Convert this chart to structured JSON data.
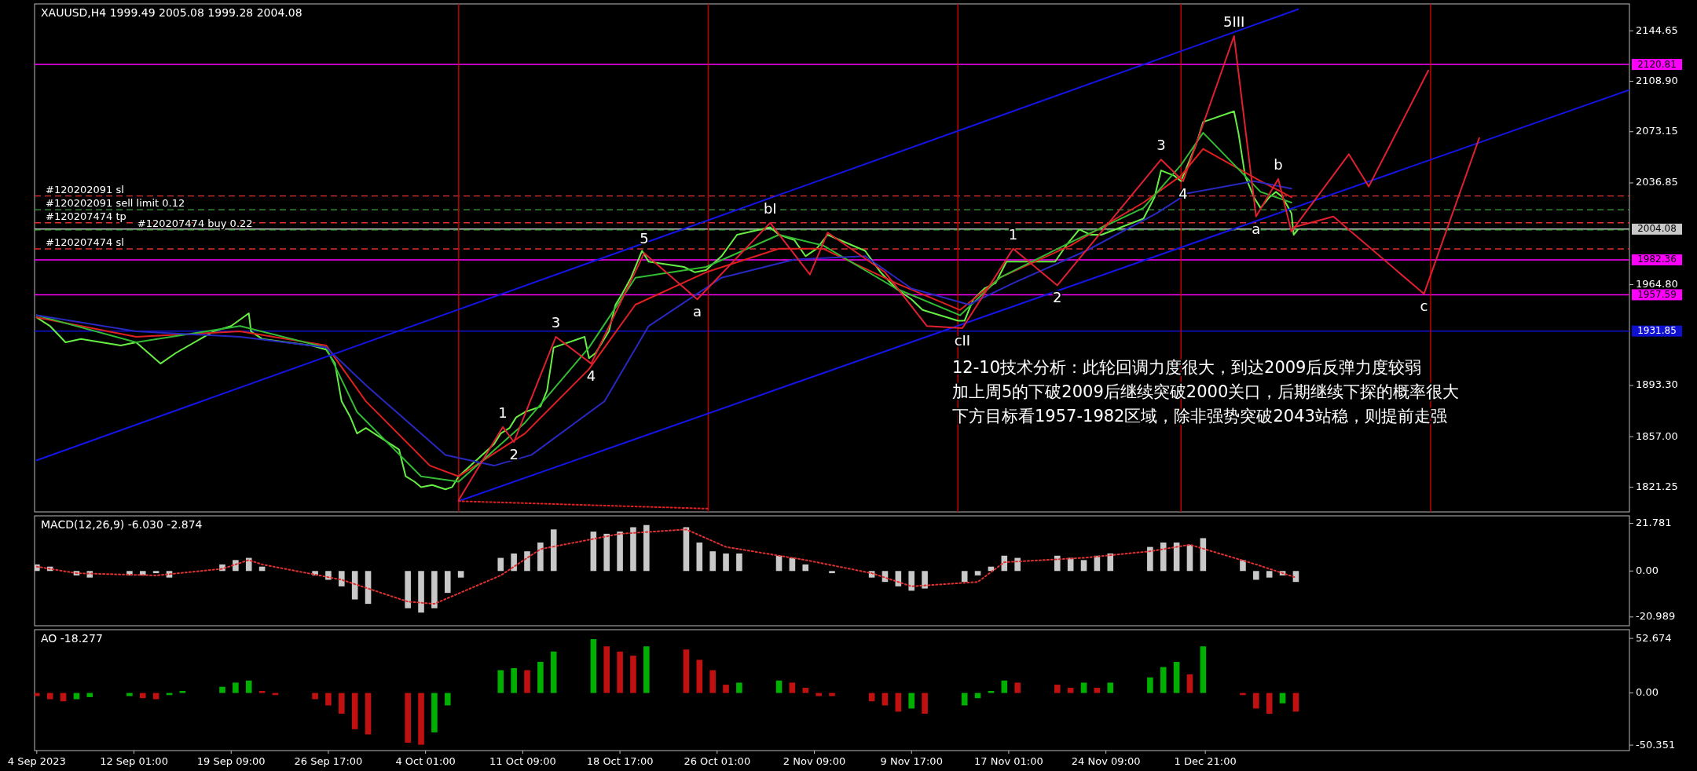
{
  "chart_data": [
    {
      "type": "line",
      "title": "XAUUSD,H4  1999.49 2005.08 1999.28 2004.08",
      "xlim": [
        "2023-09-04T13:00",
        "2024-01-02T21:00"
      ],
      "ylim": [
        1803.7,
        2163.7
      ],
      "tick_labels": "y",
      "yticks": [
        2144.65,
        {
          "value": 2108.9,
          "label": "2108.90"
        },
        2073.15,
        2036.85,
        {
          "value": 1964.8,
          "label": "1964.80"
        },
        {
          "value": 1893.3,
          "label": "1893.30"
        },
        {
          "value": 1857,
          "label": "1857.00"
        },
        1821.25
      ],
      "series": [
        {
          "color": "#66ee44",
          "x": [
            "2023-09-04T17:00",
            "2023-09-05T17:00",
            "2023-09-06T21:00",
            "2023-09-08T01:00",
            "2023-09-11T01:00",
            "2023-09-12T05:00",
            "2023-09-14T01:00",
            "2023-09-15T05:00",
            "2023-09-18T01:00",
            "2023-09-19T09:00",
            "2023-09-20T17:00",
            "2023-09-20T21:00",
            "2023-09-21T17:00",
            "2023-09-25T09:00",
            "2023-09-26T13:00",
            "2023-09-27T05:00",
            "2023-09-27T17:00",
            "2023-09-28T09:00",
            "2023-09-28T21:00",
            "2023-09-29T13:00",
            "2023-10-02T01:00",
            "2023-10-02T13:00",
            "2023-10-03T05:00",
            "2023-10-03T17:00",
            "2023-10-04T13:00",
            "2023-10-05T13:00",
            "2023-10-06T01:00",
            "2023-10-06T13:00",
            "2023-10-09T05:00",
            "2023-10-09T17:00",
            "2023-10-10T09:00",
            "2023-10-10T21:00",
            "2023-10-11T13:00",
            "2023-10-12T17:00",
            "2023-10-13T05:00",
            "2023-10-13T17:00",
            "2023-10-16T01:00",
            "2023-10-16T09:00",
            "2023-10-16T21:00",
            "2023-10-17T21:00",
            "2023-10-18T09:00",
            "2023-10-18T21:00",
            "2023-10-19T13:00",
            "2023-10-20T09:00",
            "2023-10-20T21:00",
            "2023-10-23T13:00",
            "2023-10-24T09:00",
            "2023-10-25T05:00",
            "2023-10-26T09:00",
            "2023-10-27T13:00",
            "2023-10-30T01:00",
            "2023-10-30T17:00",
            "2023-10-31T21:00",
            "2023-11-01T17:00",
            "2023-11-02T13:00",
            "2023-11-03T09:00",
            "2023-11-06T05:00",
            "2023-11-07T09:00",
            "2023-11-08T13:00",
            "2023-11-09T17:00",
            "2023-11-10T13:00",
            "2023-11-13T05:00",
            "2023-11-13T17:00",
            "2023-11-14T09:00",
            "2023-11-15T05:00",
            "2023-11-16T01:00",
            "2023-11-16T21:00",
            "2023-11-17T17:00",
            "2023-11-20T13:00",
            "2023-11-21T09:00",
            "2023-11-22T09:00",
            "2023-11-23T05:00",
            "2023-11-24T01:00",
            "2023-11-27T05:00",
            "2023-11-28T01:00",
            "2023-11-28T13:00",
            "2023-11-29T13:00",
            "2023-11-30T01:00",
            "2023-11-30T13:00",
            "2023-12-01T05:00",
            "2023-12-01T17:00",
            "2023-12-04T01:00",
            "2023-12-04T09:00",
            "2023-12-04T21:00",
            "2023-12-05T13:00",
            "2023-12-06T01:00",
            "2023-12-06T17:00",
            "2023-12-07T05:00",
            "2023-12-07T17:00",
            "2023-12-08T09:00",
            "2023-12-08T13:00",
            "2023-12-08T21:00"
          ],
          "values": [
            1941.5,
            1935.4,
            1923.9,
            1926.3,
            1921.7,
            1923.9,
            1908.8,
            1916.4,
            1931.6,
            1935.4,
            1944.5,
            1931.6,
            1926.3,
            1921.7,
            1918.7,
            1908.8,
            1882.1,
            1870.7,
            1859.3,
            1863.1,
            1847.9,
            1828.9,
            1825.1,
            1821.3,
            1822.8,
            1819.7,
            1821.3,
            1828.9,
            1851.7,
            1859.3,
            1863.1,
            1870.7,
            1874.5,
            1878.3,
            1889.7,
            1920.2,
            1927.8,
            1912.6,
            1916.4,
            1931.6,
            1950.6,
            1958.2,
            1969.7,
            1988.7,
            1981.1,
            1977.3,
            1973.5,
            1975,
            1984.9,
            2000.1,
            2005.4,
            2000.1,
            1996.3,
            1984.9,
            1990.2,
            2000.1,
            1988.7,
            1973.5,
            1962,
            1954.4,
            1946.8,
            1939.2,
            1939.2,
            1954.4,
            1962,
            1965.8,
            1981.1,
            1981.1,
            1981.1,
            1992.5,
            2003.9,
            2000.1,
            2000.1,
            2011.5,
            2026.7,
            2045.7,
            2041.9,
            2038.1,
            2049.5,
            2064.8,
            2080,
            2087.6,
            2072.4,
            2041.9,
            2026.7,
            2019.1,
            2026.7,
            2030.5,
            2026.7,
            2015.3,
            2000.1,
            2004
          ]
        },
        {
          "color": "#e02020",
          "x": [
            "2023-09-04T17:00",
            "2023-09-12T05:00",
            "2023-09-20T01:00",
            "2023-09-26T13:00",
            "2023-09-29T13:00",
            "2023-10-04T09:00",
            "2023-10-06T13:00",
            "2023-10-11T13:00",
            "2023-10-16T09:00",
            "2023-10-19T21:00",
            "2023-10-25T05:00",
            "2023-10-30T17:00",
            "2023-11-03T01:00",
            "2023-11-08T13:00",
            "2023-11-13T09:00",
            "2023-11-16T09:00",
            "2023-11-21T17:00",
            "2023-11-27T05:00",
            "2023-11-30T01:00",
            "2023-12-01T17:00",
            "2023-12-06T01:00",
            "2023-12-08T09:00"
          ],
          "values": [
            1941.5,
            1927.8,
            1931.6,
            1921.7,
            1882.1,
            1836.5,
            1828.9,
            1859.3,
            1904.9,
            1950.6,
            1973.5,
            1990.2,
            1990.2,
            1965.8,
            1946.8,
            1969.7,
            1992.5,
            2022.9,
            2041.9,
            2061,
            2038.1,
            2026.7
          ]
        },
        {
          "color": "#33bb33",
          "x": [
            "2023-09-04T17:00",
            "2023-09-12T05:00",
            "2023-09-20T01:00",
            "2023-09-26T13:00",
            "2023-09-28T21:00",
            "2023-10-03T17:00",
            "2023-10-06T13:00",
            "2023-10-11T13:00",
            "2023-10-16T09:00",
            "2023-10-19T21:00",
            "2023-10-25T05:00",
            "2023-10-30T17:00",
            "2023-11-03T01:00",
            "2023-11-08T13:00",
            "2023-11-13T09:00",
            "2023-11-16T09:00",
            "2023-11-21T17:00",
            "2023-11-27T05:00",
            "2023-11-30T01:00",
            "2023-12-01T17:00",
            "2023-12-06T01:00",
            "2023-12-08T09:00"
          ],
          "values": [
            1943,
            1923.9,
            1935.4,
            1920.2,
            1874.5,
            1828.9,
            1825.1,
            1866.9,
            1920.2,
            1969.7,
            1977.3,
            2000.1,
            1992.5,
            1962,
            1943,
            1969.7,
            1994.8,
            2019.1,
            2049.5,
            2072.4,
            2030.5,
            2022.9
          ]
        },
        {
          "color": "#2828c0",
          "x": [
            "2023-09-04T17:00",
            "2023-09-12T05:00",
            "2023-09-20T01:00",
            "2023-09-26T13:00",
            "2023-09-29T13:00",
            "2023-10-05T13:00",
            "2023-10-09T05:00",
            "2023-10-12T01:00",
            "2023-10-17T13:00",
            "2023-10-20T21:00",
            "2023-10-26T09:00",
            "2023-10-31T21:00",
            "2023-11-06T05:00",
            "2023-11-09T17:00",
            "2023-11-14T01:00",
            "2023-11-17T09:00",
            "2023-11-22T21:00",
            "2023-11-28T05:00",
            "2023-11-30T13:00",
            "2023-12-05T13:00",
            "2023-12-08T09:00"
          ],
          "values": [
            1943,
            1931.6,
            1927.8,
            1920.2,
            1893.5,
            1844.1,
            1836.5,
            1844.1,
            1882.1,
            1935.4,
            1969.7,
            1982.6,
            1984.9,
            1962,
            1950.6,
            1965.8,
            1988.7,
            2015.3,
            2029.5,
            2038.1,
            2032.8
          ]
        },
        {
          "color": "#1414e6",
          "x": [
            "2023-09-04T17:00",
            "2023-12-08T21:00"
          ],
          "values": [
            1840.3,
            2159.9
          ]
        },
        {
          "color": "#1414e6",
          "x": [
            "2023-10-06T13:00",
            "2024-01-02T21:00"
          ],
          "values": [
            1811.3,
            2102.8
          ]
        },
        {
          "color": "#e02020",
          "line_style": "dotted",
          "x": [
            "2023-10-06T13:00",
            "2023-10-25T09:00"
          ],
          "values": [
            1811.3,
            1806
          ]
        },
        {
          "color": "#e02030",
          "x": [
            "2023-10-06T13:00",
            "2023-10-09T21:00",
            "2023-10-10T17:00",
            "2023-10-13T21:00",
            "2023-10-16T13:00",
            "2023-10-20T13:00",
            "2023-10-24T13:00",
            "2023-10-30T01:00",
            "2023-11-02T01:00",
            "2023-11-03T09:00",
            "2023-11-07T17:00",
            "2023-11-10T21:00",
            "2023-11-13T13:00",
            "2023-11-17T09:00",
            "2023-11-20T17:00",
            "2023-11-28T13:00",
            "2023-11-30T05:00",
            "2023-12-04T01:00",
            "2023-12-05T17:00",
            "2023-12-07T09:00",
            "2023-12-08T09:00",
            "2023-12-12T17:00",
            "2023-12-14T05:00",
            "2023-12-18T17:00"
          ],
          "values": [
            1812.1,
            1863.9,
            1853.2,
            1927.8,
            1908.8,
            1987.1,
            1954.4,
            2008.5,
            1971.9,
            2001.6,
            1973.5,
            1935.4,
            1933.9,
            1990.2,
            1964.3,
            2053.4,
            2038.1,
            2140.9,
            2013,
            2039.7,
            2002.4,
            2057.2,
            2034.3,
            2116.5
          ]
        },
        {
          "color": "#e02030",
          "x": [
            "2023-12-08T13:00",
            "2023-12-11T13:00",
            "2023-12-18T09:00",
            "2023-12-22T13:00"
          ],
          "values": [
            2005.4,
            2013,
            1958.2,
            2068.6
          ]
        }
      ],
      "ref_lines": [
        {
          "axis": "y",
          "value": 2120.81,
          "label": "2120.81",
          "color": "#ff00ff",
          "line_style": "solid"
        },
        {
          "axis": "y",
          "value": 2004.08,
          "label": "2004.08",
          "color": "#c8c8c8",
          "line_style": "solid"
        },
        {
          "axis": "y",
          "value": 1982.36,
          "label": "1982.36",
          "color": "#ff00ff",
          "line_style": "solid"
        },
        {
          "axis": "y",
          "value": 1957.59,
          "label": "1957.59",
          "color": "#ff00ff",
          "line_style": "solid"
        },
        {
          "axis": "y",
          "value": 1931.85,
          "label": "1931.85",
          "color": "#1010d0",
          "line_style": "solid"
        },
        {
          "axis": "y",
          "value": 2027.6,
          "label": "#120202091 sl",
          "color": "#e03030",
          "line_style": "dashed"
        },
        {
          "axis": "y",
          "value": 2017.8,
          "label": "#120202091 sell limit 0.12",
          "color": "#40a040",
          "line_style": "dashed"
        },
        {
          "axis": "y",
          "value": 2008.6,
          "label": "#120207474 tp",
          "color": "#e03030",
          "line_style": "dashed"
        },
        {
          "axis": "y",
          "value": 2003.6,
          "label": "#120207474 buy 0.22",
          "color": "#40a040",
          "line_style": "dashed"
        },
        {
          "axis": "y",
          "value": 1990.1,
          "label": "#120207474 sl",
          "color": "#e03030",
          "line_style": "dashed"
        },
        {
          "axis": "x",
          "value": "2023-10-06T13:00",
          "color": "#c00000",
          "line_style": "solid"
        },
        {
          "axis": "x",
          "value": "2023-10-25T09:00",
          "color": "#c00000",
          "line_style": "solid"
        },
        {
          "axis": "x",
          "value": "2023-11-13T05:00",
          "color": "#c00000",
          "line_style": "solid"
        },
        {
          "axis": "x",
          "value": "2023-11-30T01:00",
          "color": "#c00000",
          "line_style": "solid"
        },
        {
          "axis": "x",
          "value": "2023-12-18T21:00",
          "color": "#c00000",
          "line_style": "solid"
        }
      ],
      "annotations": [
        {
          "text": "1",
          "x": "2023-10-09T21:00",
          "y": 1863.9
        },
        {
          "text": "2",
          "x": "2023-10-10T17:00",
          "y": 1853.2
        },
        {
          "text": "3",
          "x": "2023-10-13T21:00",
          "y": 1927.8
        },
        {
          "text": "4",
          "x": "2023-10-16T13:00",
          "y": 1908.8
        },
        {
          "text": "5",
          "x": "2023-10-20T13:00",
          "y": 1987.1
        },
        {
          "text": "a",
          "x": "2023-10-24T13:00",
          "y": 1954.4
        },
        {
          "text": "bI",
          "x": "2023-10-30T01:00",
          "y": 2008.5
        },
        {
          "text": "cII",
          "x": "2023-11-13T13:00",
          "y": 1933.9
        },
        {
          "text": "1",
          "x": "2023-11-17T09:00",
          "y": 1990.2
        },
        {
          "text": "2",
          "x": "2023-11-20T17:00",
          "y": 1964.3
        },
        {
          "text": "3",
          "x": "2023-11-28T13:00",
          "y": 2053.4
        },
        {
          "text": "4",
          "x": "2023-11-30T05:00",
          "y": 2038.1
        },
        {
          "text": "5III",
          "x": "2023-12-04T01:00",
          "y": 2140.9
        },
        {
          "text": "a",
          "x": "2023-12-05T17:00",
          "y": 2013
        },
        {
          "text": "b",
          "x": "2023-12-07T09:00",
          "y": 2039.7
        },
        {
          "text": "c",
          "x": "2023-12-18T09:00",
          "y": 1958.2
        },
        "12-10技术分析：此轮回调力度很大，到达2009后反弹力度较弱",
        "加上周5的下破2009后继续突破2000关口，后期继续下探的概率很大",
        "下方目标看1957-1982区域，除非强势突破2043站稳，则提前走强"
      ]
    },
    {
      "type": "bar",
      "title": "MACD(12,26,9) -6.030 -2.874",
      "xlim": [
        "2023-09-04T13:00",
        "2024-01-02T21:00"
      ],
      "ylim": [
        -25,
        25.2
      ],
      "tick_labels": "y",
      "yticks": [
        21.781,
        {
          "value": 0,
          "label": "0.00"
        },
        -20.989
      ],
      "series": [
        {
          "color": "#c8c8c8",
          "x": [
            "2023-09-04T17:00",
            "2023-09-05T17:00",
            "2023-09-06T17:00",
            "2023-09-07T17:00",
            "2023-09-08T17:00",
            "2023-09-11T17:00",
            "2023-09-12T17:00",
            "2023-09-13T17:00",
            "2023-09-14T17:00",
            "2023-09-15T17:00",
            "2023-09-18T17:00",
            "2023-09-19T17:00",
            "2023-09-20T17:00",
            "2023-09-21T17:00",
            "2023-09-22T17:00",
            "2023-09-25T17:00",
            "2023-09-26T17:00",
            "2023-09-27T17:00",
            "2023-09-28T17:00",
            "2023-09-29T17:00",
            "2023-10-02T17:00",
            "2023-10-03T17:00",
            "2023-10-04T17:00",
            "2023-10-05T17:00",
            "2023-10-06T17:00",
            "2023-10-09T17:00",
            "2023-10-10T17:00",
            "2023-10-11T17:00",
            "2023-10-12T17:00",
            "2023-10-13T17:00",
            "2023-10-16T17:00",
            "2023-10-17T17:00",
            "2023-10-18T17:00",
            "2023-10-19T17:00",
            "2023-10-20T17:00",
            "2023-10-23T17:00",
            "2023-10-24T17:00",
            "2023-10-25T17:00",
            "2023-10-26T17:00",
            "2023-10-27T17:00",
            "2023-10-30T17:00",
            "2023-10-31T17:00",
            "2023-11-01T17:00",
            "2023-11-02T17:00",
            "2023-11-03T17:00",
            "2023-11-06T17:00",
            "2023-11-07T17:00",
            "2023-11-08T17:00",
            "2023-11-09T17:00",
            "2023-11-10T17:00",
            "2023-11-13T17:00",
            "2023-11-14T17:00",
            "2023-11-15T17:00",
            "2023-11-16T17:00",
            "2023-11-17T17:00",
            "2023-11-20T17:00",
            "2023-11-21T17:00",
            "2023-11-22T17:00",
            "2023-11-23T17:00",
            "2023-11-24T17:00",
            "2023-11-27T17:00",
            "2023-11-28T17:00",
            "2023-11-29T17:00",
            "2023-11-30T17:00",
            "2023-12-01T17:00",
            "2023-12-04T17:00",
            "2023-12-05T17:00",
            "2023-12-06T17:00",
            "2023-12-07T17:00",
            "2023-12-08T17:00"
          ],
          "values": [
            3,
            2,
            0,
            -2,
            -3,
            -2,
            -2,
            -1,
            -3,
            0,
            3,
            5,
            6,
            2,
            0,
            -2,
            -4,
            -7,
            -13,
            -15,
            -17,
            -19,
            -17,
            -10,
            -3,
            6,
            8,
            9,
            13,
            19,
            18,
            17,
            18,
            20,
            21,
            20,
            13,
            9,
            8,
            8,
            7,
            6,
            3,
            0,
            -1,
            -3,
            -5,
            -7,
            -9,
            -8,
            -5,
            -2,
            2,
            7,
            6,
            7,
            6,
            5,
            7,
            8,
            11,
            13,
            13,
            12,
            15,
            5,
            -4,
            -3,
            -2,
            -5
          ]
        },
        {
          "type": "line",
          "color": "#e03030",
          "line_style": "dotted",
          "x": [
            "2023-09-04T17:00",
            "2023-09-07T17:00",
            "2023-09-13T17:00",
            "2023-09-18T17:00",
            "2023-09-20T17:00",
            "2023-09-21T17:00",
            "2023-09-27T17:00",
            "2023-10-02T17:00",
            "2023-10-04T17:00",
            "2023-10-09T17:00",
            "2023-10-12T17:00",
            "2023-10-18T17:00",
            "2023-10-23T17:00",
            "2023-10-26T17:00",
            "2023-11-01T17:00",
            "2023-11-06T17:00",
            "2023-11-09T17:00",
            "2023-11-14T17:00",
            "2023-11-16T17:00",
            "2023-11-22T17:00",
            "2023-11-27T17:00",
            "2023-11-30T17:00",
            "2023-12-05T17:00",
            "2023-12-08T17:00"
          ],
          "values": [
            2,
            -1,
            -2,
            1,
            5,
            3,
            -4,
            -14,
            -15,
            -2,
            10,
            17,
            19,
            11,
            5,
            -1,
            -7,
            -5,
            4,
            6,
            9,
            12,
            3,
            -3
          ]
        }
      ]
    },
    {
      "type": "bar",
      "title": "AO -18.277",
      "xlim": [
        "2023-09-04T13:00",
        "2024-01-02T21:00"
      ],
      "ylim": [
        -55.6,
        61.1
      ],
      "yticks": [
        52.674,
        {
          "value": 0,
          "label": "0.00"
        },
        -50.351
      ],
      "xticks": [
        {
          "value": "2023-09-04T17:00",
          "label": "4 Sep 2023"
        },
        {
          "value": "2023-09-12T01:00",
          "label": "12 Sep 01:00"
        },
        {
          "value": "2023-09-19T09:00",
          "label": "19 Sep 09:00"
        },
        {
          "value": "2023-09-26T17:00",
          "label": "26 Sep 17:00"
        },
        {
          "value": "2023-10-04T01:00",
          "label": "4 Oct 01:00"
        },
        {
          "value": "2023-10-11T09:00",
          "label": "11 Oct 09:00"
        },
        {
          "value": "2023-10-18T17:00",
          "label": "18 Oct 17:00"
        },
        {
          "value": "2023-10-26T01:00",
          "label": "26 Oct 01:00"
        },
        {
          "value": "2023-11-02T09:00",
          "label": "2 Nov 09:00"
        },
        {
          "value": "2023-11-09T17:00",
          "label": "9 Nov 17:00"
        },
        {
          "value": "2023-11-17T01:00",
          "label": "17 Nov 01:00"
        },
        {
          "value": "2023-11-24T09:00",
          "label": "24 Nov 09:00"
        },
        {
          "value": "2023-12-01T21:00",
          "label": "1 Dec 21:00"
        }
      ],
      "series": [
        {
          "x": [
            "2023-09-04T17:00",
            "2023-09-05T17:00",
            "2023-09-06T17:00",
            "2023-09-07T17:00",
            "2023-09-08T17:00",
            "2023-09-11T17:00",
            "2023-09-12T17:00",
            "2023-09-13T17:00",
            "2023-09-14T17:00",
            "2023-09-15T17:00",
            "2023-09-18T17:00",
            "2023-09-19T17:00",
            "2023-09-20T17:00",
            "2023-09-21T17:00",
            "2023-09-22T17:00",
            "2023-09-25T17:00",
            "2023-09-26T17:00",
            "2023-09-27T17:00",
            "2023-09-28T17:00",
            "2023-09-29T17:00",
            "2023-10-02T17:00",
            "2023-10-03T17:00",
            "2023-10-04T17:00",
            "2023-10-05T17:00",
            "2023-10-06T17:00",
            "2023-10-09T17:00",
            "2023-10-10T17:00",
            "2023-10-11T17:00",
            "2023-10-12T17:00",
            "2023-10-13T17:00",
            "2023-10-16T17:00",
            "2023-10-17T17:00",
            "2023-10-18T17:00",
            "2023-10-19T17:00",
            "2023-10-20T17:00",
            "2023-10-23T17:00",
            "2023-10-24T17:00",
            "2023-10-25T17:00",
            "2023-10-26T17:00",
            "2023-10-27T17:00",
            "2023-10-30T17:00",
            "2023-10-31T17:00",
            "2023-11-01T17:00",
            "2023-11-02T17:00",
            "2023-11-03T17:00",
            "2023-11-06T17:00",
            "2023-11-07T17:00",
            "2023-11-08T17:00",
            "2023-11-09T17:00",
            "2023-11-10T17:00",
            "2023-11-13T17:00",
            "2023-11-14T17:00",
            "2023-11-15T17:00",
            "2023-11-16T17:00",
            "2023-11-17T17:00",
            "2023-11-20T17:00",
            "2023-11-21T17:00",
            "2023-11-22T17:00",
            "2023-11-23T17:00",
            "2023-11-24T17:00",
            "2023-11-27T17:00",
            "2023-11-28T17:00",
            "2023-11-29T17:00",
            "2023-11-30T17:00",
            "2023-12-01T17:00",
            "2023-12-04T17:00",
            "2023-12-05T17:00",
            "2023-12-06T17:00",
            "2023-12-07T17:00",
            "2023-12-08T17:00"
          ],
          "values": [
            -3,
            -6,
            -8,
            -6,
            -4,
            -3,
            -5,
            -6,
            -2,
            2,
            6,
            10,
            12,
            2,
            -2,
            -6,
            -12,
            -20,
            -35,
            -40,
            -48,
            -50,
            -38,
            -12,
            0,
            22,
            24,
            22,
            30,
            40,
            52,
            45,
            40,
            36,
            45,
            42,
            32,
            22,
            8,
            10,
            12,
            10,
            5,
            -3,
            -3,
            -8,
            -12,
            -18,
            -15,
            -20,
            -12,
            -5,
            2,
            12,
            10,
            8,
            5,
            10,
            5,
            10,
            15,
            25,
            30,
            18,
            45,
            -2,
            -15,
            -20,
            -10,
            -18
          ],
          "colors": [
            "#c01010",
            "#c01010",
            "#c01010",
            "#00b000",
            "#00b000",
            "#00b000",
            "#c01010",
            "#c01010",
            "#00b000",
            "#00b000",
            "#00b000",
            "#00b000",
            "#00b000",
            "#c01010",
            "#c01010",
            "#c01010",
            "#c01010",
            "#c01010",
            "#c01010",
            "#c01010",
            "#c01010",
            "#c01010",
            "#00b000",
            "#00b000",
            "#00b000",
            "#00b000",
            "#00b000",
            "#c01010",
            "#00b000",
            "#00b000",
            "#00b000",
            "#c01010",
            "#c01010",
            "#c01010",
            "#00b000",
            "#c01010",
            "#c01010",
            "#c01010",
            "#c01010",
            "#00b000",
            "#00b000",
            "#c01010",
            "#c01010",
            "#c01010",
            "#c01010",
            "#c01010",
            "#c01010",
            "#c01010",
            "#00b000",
            "#c01010",
            "#00b000",
            "#00b000",
            "#00b000",
            "#00b000",
            "#c01010",
            "#c01010",
            "#c01010",
            "#00b000",
            "#c01010",
            "#00b000",
            "#00b000",
            "#00b000",
            "#00b000",
            "#c01010",
            "#00b000",
            "#c01010",
            "#c01010",
            "#c01010",
            "#00b000",
            "#c01010"
          ]
        }
      ]
    }
  ]
}
